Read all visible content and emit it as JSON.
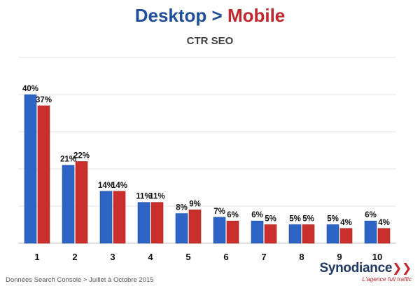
{
  "header": {
    "title_desktop": "Desktop",
    "title_sep": ">",
    "title_mobile": "Mobile",
    "subtitle": "CTR SEO"
  },
  "footer": {
    "source": "Données Search Console > Juillet à Octobre 2015"
  },
  "logo": {
    "brand": "Synodiance",
    "chevrons": "❯❯",
    "tagline": "L'agence full traffic"
  },
  "colors": {
    "desktop": "#2e64c4",
    "mobile": "#c9302c",
    "grid": "#e6e6e6",
    "axis": "#bfbfbf"
  },
  "chart_data": {
    "type": "bar",
    "title": "CTR SEO",
    "categories": [
      "1",
      "2",
      "3",
      "4",
      "5",
      "6",
      "7",
      "8",
      "9",
      "10"
    ],
    "series": [
      {
        "name": "Desktop",
        "values": [
          40,
          21,
          14,
          11,
          8,
          7,
          6,
          5,
          5,
          6
        ],
        "labels": [
          "40%",
          "21%",
          "14%",
          "11%",
          "8%",
          "7%",
          "6%",
          "5%",
          "5%",
          "6%"
        ]
      },
      {
        "name": "Mobile",
        "values": [
          37,
          22,
          14,
          11,
          9,
          6,
          5,
          5,
          4,
          4
        ],
        "labels": [
          "37%",
          "22%",
          "14%",
          "11%",
          "9%",
          "6%",
          "5%",
          "5%",
          "4%",
          "4%"
        ]
      }
    ],
    "ylim": [
      0,
      40
    ],
    "grid": true,
    "legend": "none"
  }
}
